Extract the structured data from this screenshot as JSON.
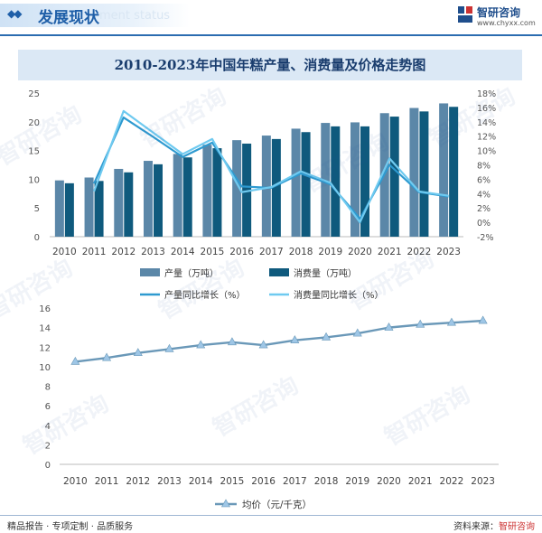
{
  "header": {
    "title": "发展现状",
    "subtitle": "ment status",
    "brand_name": "智研咨询",
    "brand_url": "www.chyxx.com"
  },
  "watermark_text": "智研咨询",
  "chart_data": [
    {
      "type": "bar",
      "title": "2010-2023年中国年糕产量、消费量及价格走势图",
      "categories": [
        "2010",
        "2011",
        "2012",
        "2013",
        "2014",
        "2015",
        "2016",
        "2017",
        "2018",
        "2019",
        "2020",
        "2021",
        "2022",
        "2023"
      ],
      "series": [
        {
          "name": "产量（万吨）",
          "type": "bar",
          "axis": "left",
          "color": "#5b87a8",
          "values": [
            9.8,
            10.3,
            11.8,
            13.2,
            14.4,
            16.0,
            16.8,
            17.6,
            18.8,
            19.8,
            19.9,
            21.5,
            22.4,
            23.2
          ]
        },
        {
          "name": "消费量（万吨）",
          "type": "bar",
          "axis": "left",
          "color": "#0f5a7d",
          "values": [
            9.3,
            9.7,
            11.2,
            12.6,
            13.8,
            15.4,
            16.2,
            17.0,
            18.2,
            19.2,
            19.2,
            20.9,
            21.8,
            22.6
          ]
        },
        {
          "name": "产量同比增长（%）",
          "type": "line",
          "axis": "right",
          "color": "#2e9ad0",
          "values": [
            null,
            5.4,
            14.6,
            11.9,
            9.1,
            11.1,
            5.0,
            4.8,
            6.8,
            5.3,
            0.5,
            8.0,
            4.2,
            3.6
          ]
        },
        {
          "name": "消费量同比增长（%）",
          "type": "line",
          "axis": "right",
          "color": "#6fcaf0",
          "values": [
            null,
            4.3,
            15.5,
            12.5,
            9.5,
            11.6,
            4.2,
            4.9,
            7.1,
            5.5,
            0.0,
            8.9,
            4.3,
            3.7
          ]
        }
      ],
      "ylim_left": [
        0,
        25
      ],
      "yticks_left": [
        0,
        5,
        10,
        15,
        20,
        25
      ],
      "ylim_right": [
        -2,
        18
      ],
      "yticks_right": [
        "-2%",
        "0%",
        "2%",
        "4%",
        "6%",
        "8%",
        "10%",
        "12%",
        "14%",
        "16%",
        "18%"
      ],
      "grid": false,
      "legend": "bottom"
    },
    {
      "type": "line",
      "categories": [
        "2010",
        "2011",
        "2012",
        "2013",
        "2014",
        "2015",
        "2016",
        "2017",
        "2018",
        "2019",
        "2020",
        "2021",
        "2022",
        "2023"
      ],
      "series": [
        {
          "name": "均价（元/千克）",
          "color": "#6a98b8",
          "marker": "triangle",
          "values": [
            10.5,
            10.9,
            11.4,
            11.8,
            12.2,
            12.5,
            12.2,
            12.7,
            13.0,
            13.4,
            14.0,
            14.3,
            14.5,
            14.7
          ]
        }
      ],
      "ylim": [
        0,
        16
      ],
      "yticks": [
        0,
        2,
        4,
        6,
        8,
        10,
        12,
        14,
        16
      ],
      "grid": false,
      "legend": "bottom"
    }
  ],
  "footer": {
    "left": "精品报告 · 专项定制 · 品质服务",
    "source_label": "资料来源：",
    "source_value": "智研咨询"
  }
}
